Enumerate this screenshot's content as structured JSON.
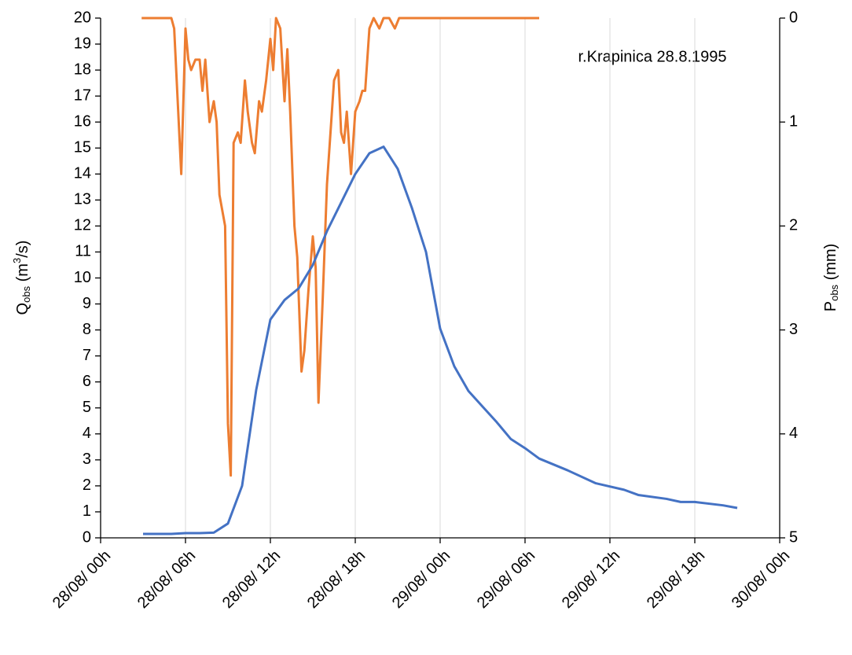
{
  "chart_data": {
    "type": "line",
    "annotation": "r.Krapinica 28.8.1995",
    "ylabel": [
      "Q",
      "obs",
      " (m",
      "3",
      "/s)"
    ],
    "y2label": [
      "P",
      "obs",
      " (mm)"
    ],
    "xlim": [
      0,
      48
    ],
    "xticks": [
      {
        "value": 0,
        "label": "28/08/ 00h"
      },
      {
        "value": 6,
        "label": "28/08/ 06h"
      },
      {
        "value": 12,
        "label": "28/08/ 12h"
      },
      {
        "value": 18,
        "label": "28/08/ 18h"
      },
      {
        "value": 24,
        "label": "29/08/ 00h"
      },
      {
        "value": 30,
        "label": "29/08/ 06h"
      },
      {
        "value": 36,
        "label": "29/08/ 12h"
      },
      {
        "value": 42,
        "label": "29/08/ 18h"
      },
      {
        "value": 48,
        "label": "30/08/ 00h"
      }
    ],
    "ylim": [
      0,
      20
    ],
    "yticks": [
      0,
      1,
      2,
      3,
      4,
      5,
      6,
      7,
      8,
      9,
      10,
      11,
      12,
      13,
      14,
      15,
      16,
      17,
      18,
      19,
      20
    ],
    "y2lim": [
      5,
      0
    ],
    "y2ticks": [
      0,
      1,
      2,
      3,
      4,
      5
    ],
    "grid": "x",
    "series": [
      {
        "color": "#4472c4",
        "x": [
          3,
          5,
          6,
          7,
          8,
          9,
          10,
          11,
          12,
          13,
          14,
          15,
          16,
          17,
          18,
          19,
          20,
          21,
          22,
          23,
          24,
          25,
          26,
          27,
          28,
          29,
          30,
          31,
          33,
          35,
          37,
          38,
          40,
          41,
          42,
          44,
          45
        ],
        "values": [
          0.15,
          0.15,
          0.18,
          0.18,
          0.2,
          0.55,
          2.0,
          5.7,
          8.4,
          9.15,
          9.6,
          10.5,
          11.8,
          12.9,
          14.0,
          14.8,
          15.05,
          14.2,
          12.7,
          11.0,
          8.05,
          6.6,
          5.65,
          5.05,
          4.45,
          3.8,
          3.45,
          3.05,
          2.6,
          2.1,
          1.85,
          1.65,
          1.5,
          1.38,
          1.38,
          1.25,
          1.15
        ]
      },
      {
        "color": "#ed7d31",
        "axis": "y2",
        "x": [
          2.9,
          5,
          5.2,
          5.7,
          6,
          6.2,
          6.4,
          6.7,
          7,
          7.2,
          7.4,
          7.7,
          8,
          8.2,
          8.4,
          8.8,
          9,
          9.2,
          9.4,
          9.7,
          9.9,
          10.2,
          10.4,
          10.7,
          10.9,
          11.2,
          11.4,
          11.7,
          12,
          12.2,
          12.4,
          12.7,
          13,
          13.2,
          13.4,
          13.7,
          13.9,
          14.2,
          14.4,
          14.7,
          15,
          15.2,
          15.4,
          15.7,
          16,
          16.2,
          16.5,
          16.8,
          17,
          17.2,
          17.4,
          17.7,
          18,
          18.3,
          18.5,
          18.7,
          19,
          19.3,
          19.7,
          20,
          20.4,
          20.8,
          21.1,
          31
        ],
        "values": [
          0,
          0,
          0.1,
          1.5,
          0.1,
          0.4,
          0.5,
          0.4,
          0.4,
          0.7,
          0.4,
          1.0,
          0.8,
          1.0,
          1.7,
          2.0,
          3.9,
          4.4,
          1.2,
          1.1,
          1.2,
          0.6,
          0.9,
          1.2,
          1.3,
          0.8,
          0.9,
          0.6,
          0.2,
          0.5,
          0,
          0.1,
          0.8,
          0.3,
          0.9,
          2.0,
          2.3,
          3.4,
          3.2,
          2.6,
          2.1,
          2.4,
          3.7,
          2.7,
          1.6,
          1.2,
          0.6,
          0.5,
          1.1,
          1.2,
          0.9,
          1.5,
          0.9,
          0.8,
          0.7,
          0.7,
          0.1,
          0,
          0.1,
          0,
          0,
          0.1,
          0,
          0
        ]
      }
    ]
  }
}
